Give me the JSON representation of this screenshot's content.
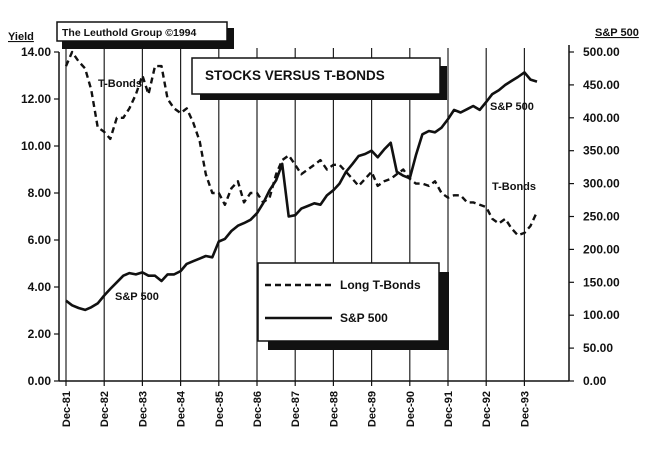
{
  "credit": "The Leuthold Group ©1994",
  "chart_data": {
    "type": "line",
    "title": "STOCKS VERSUS T-BONDS",
    "ylabel_left": "Yield",
    "ylabel_right": "S&P 500",
    "ylim_left": [
      0,
      14
    ],
    "ylim_right": [
      0,
      500
    ],
    "left_ticks": [
      "0.00",
      "2.00",
      "4.00",
      "6.00",
      "8.00",
      "10.00",
      "12.00",
      "14.00"
    ],
    "right_ticks": [
      "0.00",
      "50.00",
      "100.00",
      "150.00",
      "200.00",
      "250.00",
      "300.00",
      "350.00",
      "400.00",
      "450.00",
      "500.00"
    ],
    "x_ticks": [
      "Dec-81",
      "Dec-82",
      "Dec-83",
      "Dec-84",
      "Dec-85",
      "Dec-86",
      "Dec-87",
      "Dec-88",
      "Dec-89",
      "Dec-90",
      "Dec-91",
      "Dec-92",
      "Dec-93"
    ],
    "grid": "vertical",
    "legend_position": "center",
    "annotations": [
      "T-Bonds",
      "S&P 500",
      "S&P 500",
      "T-Bonds"
    ],
    "series": [
      {
        "name": "Long T-Bonds",
        "axis": "left",
        "style": "dashed",
        "x": [
          1981.92,
          1982.08,
          1982.25,
          1982.42,
          1982.58,
          1982.75,
          1982.92,
          1983.08,
          1983.25,
          1983.42,
          1983.58,
          1983.75,
          1983.92,
          1984.08,
          1984.25,
          1984.42,
          1984.58,
          1984.75,
          1984.92,
          1985.08,
          1985.25,
          1985.42,
          1985.58,
          1985.75,
          1985.92,
          1986.08,
          1986.25,
          1986.42,
          1986.58,
          1986.75,
          1986.92,
          1987.08,
          1987.25,
          1987.42,
          1987.58,
          1987.75,
          1987.92,
          1988.08,
          1988.25,
          1988.42,
          1988.58,
          1988.75,
          1988.92,
          1989.08,
          1989.25,
          1989.42,
          1989.58,
          1989.75,
          1989.92,
          1990.08,
          1990.25,
          1990.42,
          1990.58,
          1990.75,
          1990.92,
          1991.08,
          1991.25,
          1991.42,
          1991.58,
          1991.75,
          1991.92,
          1992.08,
          1992.25,
          1992.42,
          1992.58,
          1992.75,
          1992.92,
          1993.08,
          1993.25,
          1993.42,
          1993.58,
          1993.75,
          1993.92,
          1994.08,
          1994.25
        ],
        "values": [
          13.4,
          14.0,
          13.6,
          13.3,
          12.4,
          10.8,
          10.6,
          10.3,
          11.2,
          11.2,
          11.6,
          12.2,
          13.0,
          12.2,
          13.4,
          13.4,
          12.0,
          11.6,
          11.4,
          11.6,
          11.0,
          10.2,
          8.8,
          8.0,
          8.0,
          7.5,
          8.2,
          8.5,
          7.6,
          8.0,
          8.0,
          7.6,
          7.8,
          8.8,
          9.4,
          9.6,
          9.2,
          8.8,
          9.0,
          9.2,
          9.4,
          9.0,
          9.2,
          9.2,
          8.9,
          8.6,
          8.3,
          8.6,
          8.9,
          8.3,
          8.5,
          8.6,
          8.8,
          9.0,
          8.6,
          8.4,
          8.4,
          8.3,
          8.5,
          8.0,
          7.8,
          7.9,
          7.9,
          7.6,
          7.6,
          7.5,
          7.4,
          6.9,
          6.7,
          6.9,
          6.5,
          6.2,
          6.3,
          6.6,
          7.2
        ]
      },
      {
        "name": "S&P 500",
        "axis": "right",
        "style": "solid",
        "x": [
          1981.92,
          1982.08,
          1982.25,
          1982.42,
          1982.58,
          1982.75,
          1982.92,
          1983.08,
          1983.25,
          1983.42,
          1983.58,
          1983.75,
          1983.92,
          1984.08,
          1984.25,
          1984.42,
          1984.58,
          1984.75,
          1984.92,
          1985.08,
          1985.25,
          1985.42,
          1985.58,
          1985.75,
          1985.92,
          1986.08,
          1986.25,
          1986.42,
          1986.58,
          1986.75,
          1986.92,
          1987.08,
          1987.25,
          1987.42,
          1987.58,
          1987.75,
          1987.92,
          1988.08,
          1988.25,
          1988.42,
          1988.58,
          1988.75,
          1988.92,
          1989.08,
          1989.25,
          1989.42,
          1989.58,
          1989.75,
          1989.92,
          1990.08,
          1990.25,
          1990.42,
          1990.58,
          1990.75,
          1990.92,
          1991.08,
          1991.25,
          1991.42,
          1991.58,
          1991.75,
          1991.92,
          1992.08,
          1992.25,
          1992.42,
          1992.58,
          1992.75,
          1992.92,
          1993.08,
          1993.25,
          1993.42,
          1993.58,
          1993.75,
          1993.92,
          1994.08,
          1994.25
        ],
        "values": [
          122,
          115,
          111,
          108,
          112,
          118,
          130,
          140,
          150,
          160,
          164,
          162,
          165,
          160,
          160,
          152,
          162,
          162,
          167,
          178,
          182,
          186,
          190,
          188,
          212,
          216,
          228,
          236,
          240,
          245,
          255,
          270,
          290,
          305,
          330,
          250,
          252,
          262,
          266,
          270,
          268,
          282,
          290,
          300,
          318,
          330,
          342,
          345,
          350,
          340,
          352,
          362,
          318,
          312,
          308,
          343,
          375,
          380,
          378,
          385,
          398,
          412,
          408,
          413,
          418,
          412,
          424,
          436,
          442,
          450,
          456,
          462,
          469,
          458,
          455
        ]
      }
    ]
  }
}
